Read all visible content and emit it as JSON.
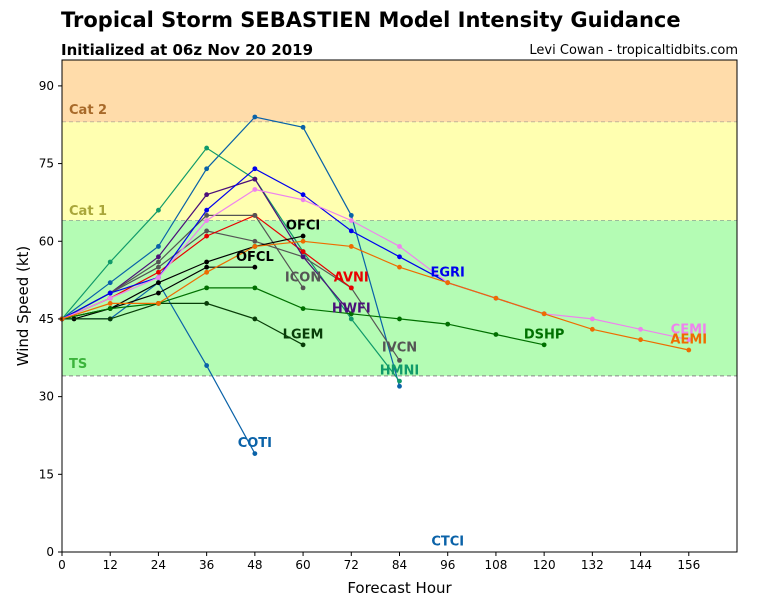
{
  "header": {
    "title": "Tropical Storm SEBASTIEN Model Intensity Guidance",
    "subtitle": "Initialized at 06z Nov 20 2019",
    "credit": "Levi Cowan - tropicaltidbits.com"
  },
  "chart_data": {
    "type": "line",
    "xlabel": "Forecast Hour",
    "ylabel": "Wind Speed (kt)",
    "xlim": [
      0,
      168
    ],
    "ylim": [
      0,
      95
    ],
    "xticks": [
      0,
      12,
      24,
      36,
      48,
      60,
      72,
      84,
      96,
      108,
      120,
      132,
      144,
      156
    ],
    "yticks": [
      0,
      15,
      30,
      45,
      60,
      75,
      90
    ],
    "grid": false,
    "bands": [
      {
        "name": "Cat 2",
        "from": 83,
        "to": 95,
        "color": "#ffdcaa",
        "label_color": "#a86a2a"
      },
      {
        "name": "Cat 1",
        "from": 64,
        "to": 83,
        "color": "#ffffb0",
        "label_color": "#a9a63a"
      },
      {
        "name": "TS",
        "from": 34,
        "to": 64,
        "color": "#b4fcb4",
        "label_color": "#3cb43c"
      }
    ],
    "series": [
      {
        "name": "CTCI",
        "color": "#0a62a8",
        "x": [
          0,
          12,
          24,
          36,
          48,
          60,
          72,
          84
        ],
        "y": [
          45,
          52,
          59,
          74,
          84,
          82,
          65,
          32
        ],
        "label_x": 96,
        "label_y": 2
      },
      {
        "name": "COTI",
        "color": "#0a62a8",
        "x": [
          0,
          12,
          24,
          36,
          48
        ],
        "y": [
          45,
          45,
          52,
          36,
          19
        ],
        "label_x": 48,
        "label_y": 21
      },
      {
        "name": "HMNI",
        "color": "#119a6a",
        "x": [
          0,
          12,
          24,
          36,
          48,
          60,
          72,
          84
        ],
        "y": [
          45,
          56,
          66,
          78,
          72,
          58,
          45,
          33
        ],
        "label_x": 84,
        "label_y": 35
      },
      {
        "name": "IVCN",
        "color": "#555555",
        "x": [
          0,
          12,
          24,
          36,
          48,
          60,
          72,
          84
        ],
        "y": [
          45,
          50,
          55,
          62,
          60,
          57,
          51,
          37
        ],
        "label_x": 84,
        "label_y": 39.5
      },
      {
        "name": "AVNI",
        "color": "#e80000",
        "x": [
          0,
          12,
          24,
          36,
          48,
          60,
          72
        ],
        "y": [
          45,
          49,
          54,
          61,
          65,
          58,
          51
        ],
        "label_x": 72,
        "label_y": 53
      },
      {
        "name": "HWFI",
        "color": "#4b0f7a",
        "x": [
          0,
          12,
          24,
          36,
          48,
          60,
          72
        ],
        "y": [
          45,
          50,
          57,
          69,
          72,
          57,
          46
        ],
        "label_x": 72,
        "label_y": 47
      },
      {
        "name": "ICON",
        "color": "#555555",
        "x": [
          0,
          12,
          24,
          36,
          48,
          60
        ],
        "y": [
          45,
          50,
          56,
          65,
          65,
          51
        ],
        "label_x": 60,
        "label_y": 53
      },
      {
        "name": "OFCI",
        "color": "#000000",
        "x": [
          0,
          12,
          24,
          36,
          48,
          60
        ],
        "y": [
          45,
          47,
          52,
          56,
          59,
          61
        ],
        "label_x": 60,
        "label_y": 63
      },
      {
        "name": "OFCL",
        "color": "#000000",
        "x": [
          3,
          12,
          24,
          36,
          48
        ],
        "y": [
          45,
          47,
          50,
          55,
          55
        ],
        "label_x": 48,
        "label_y": 57
      },
      {
        "name": "LGEM",
        "color": "#083d08",
        "x": [
          0,
          12,
          24,
          36,
          48,
          60
        ],
        "y": [
          45,
          45,
          48,
          48,
          45,
          40
        ],
        "label_x": 60,
        "label_y": 42
      },
      {
        "name": "DSHP",
        "color": "#007000",
        "x": [
          0,
          12,
          24,
          36,
          48,
          60,
          72,
          84,
          96,
          108,
          120
        ],
        "y": [
          45,
          47,
          48,
          51,
          51,
          47,
          46,
          45,
          44,
          42,
          40
        ],
        "label_x": 120,
        "label_y": 42
      },
      {
        "name": "EGRI",
        "color": "#0000ee",
        "x": [
          0,
          12,
          24,
          36,
          48,
          60,
          72,
          84,
          96,
          108,
          120
        ],
        "y": [
          45,
          50,
          53,
          66,
          74,
          69,
          62,
          57,
          52,
          49,
          46
        ],
        "label_x": 96,
        "label_y": 54
      },
      {
        "name": "CEMI",
        "color": "#ee82ee",
        "x": [
          0,
          12,
          24,
          36,
          48,
          60,
          72,
          84,
          96,
          108,
          120,
          132,
          144,
          156
        ],
        "y": [
          45,
          49,
          53,
          64,
          70,
          68,
          64,
          59,
          52,
          49,
          46,
          45,
          43,
          41
        ],
        "label_x": 156,
        "label_y": 43
      },
      {
        "name": "AEMI",
        "color": "#ee6c00",
        "x": [
          0,
          12,
          24,
          36,
          48,
          60,
          72,
          84,
          96,
          108,
          120,
          132,
          144,
          156
        ],
        "y": [
          45,
          48,
          48,
          54,
          59,
          60,
          59,
          55,
          52,
          49,
          46,
          43,
          41,
          39
        ],
        "label_x": 156,
        "label_y": 41
      }
    ]
  }
}
